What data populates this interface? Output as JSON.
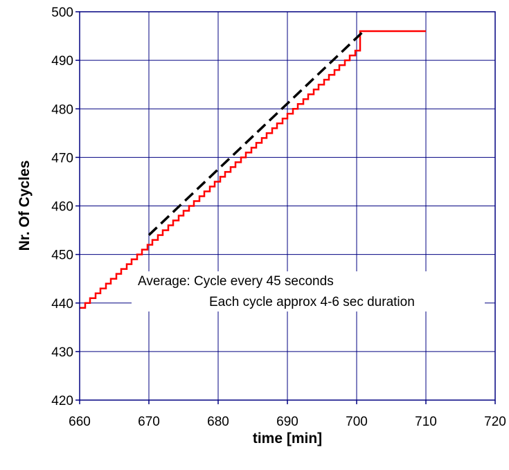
{
  "chart_data": {
    "type": "line",
    "xlabel": "time [min]",
    "ylabel": "Nr. Of Cycles",
    "xlim": [
      660,
      720
    ],
    "ylim": [
      420,
      500
    ],
    "x_ticks": [
      "660",
      "670",
      "680",
      "690",
      "700",
      "710",
      "720"
    ],
    "y_ticks": [
      "420",
      "430",
      "440",
      "450",
      "460",
      "470",
      "480",
      "490",
      "500"
    ],
    "grid": true,
    "annotations": [
      "Average:  Cycle every 45 seconds",
      "Each cycle approx 4-6 sec duration"
    ],
    "series": [
      {
        "style": "step",
        "color": "#ff0000",
        "x": [
          660,
          660.8,
          661.5,
          662.3,
          663,
          663.8,
          664.5,
          665.3,
          666,
          666.8,
          667.5,
          668.3,
          669,
          669.8,
          670.5,
          671.3,
          672,
          672.8,
          673.5,
          674.3,
          675,
          675.8,
          676.5,
          677.3,
          678,
          678.8,
          679.5,
          680.3,
          681,
          681.8,
          682.5,
          683.3,
          684,
          684.8,
          685.5,
          686.3,
          687,
          687.8,
          688.5,
          689.3,
          690,
          690.8,
          691.5,
          692.3,
          693,
          693.8,
          694.5,
          695.3,
          696,
          696.8,
          697.5,
          698.3,
          699,
          699.8,
          700.5,
          710
        ],
        "y": [
          439,
          440,
          441,
          442,
          443,
          444,
          445,
          446,
          447,
          448,
          449,
          450,
          451,
          452,
          453,
          454,
          455,
          456,
          457,
          458,
          459,
          460,
          461,
          462,
          463,
          464,
          465,
          466,
          467,
          468,
          469,
          470,
          471,
          472,
          473,
          474,
          475,
          476,
          477,
          478,
          479,
          480,
          481,
          482,
          483,
          484,
          485,
          486,
          487,
          488,
          489,
          490,
          491,
          492,
          496,
          496
        ]
      },
      {
        "style": "dashed",
        "color": "#000000",
        "x": [
          670,
          701
        ],
        "y": [
          454,
          496
        ]
      }
    ]
  }
}
